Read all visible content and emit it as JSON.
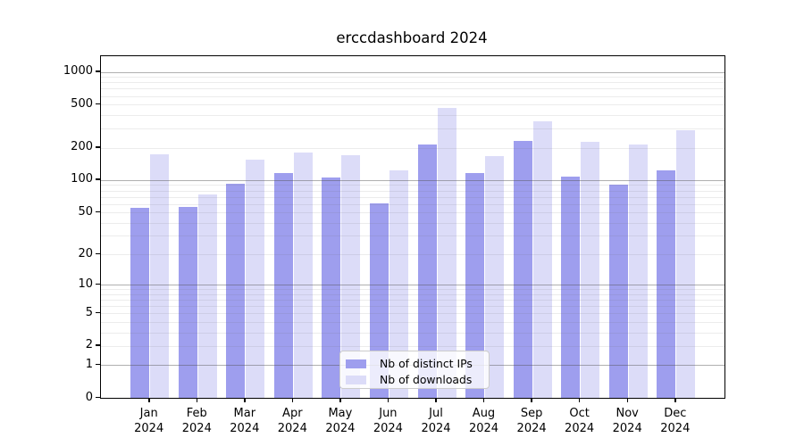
{
  "title": "erccdashboard 2024",
  "chart_data": {
    "type": "bar",
    "title": "erccdashboard 2024",
    "categories": [
      "Jan 2024",
      "Feb 2024",
      "Mar 2024",
      "Apr 2024",
      "May 2024",
      "Jun 2024",
      "Jul 2024",
      "Aug 2024",
      "Sep 2024",
      "Oct 2024",
      "Nov 2024",
      "Dec 2024"
    ],
    "series": [
      {
        "name": "Nb of distinct IPs",
        "color": "#9e9eee",
        "values": [
          55,
          56,
          93,
          117,
          105,
          61,
          213,
          117,
          229,
          108,
          91,
          122
        ]
      },
      {
        "name": "Nb of downloads",
        "color": "#dcdcf8",
        "values": [
          175,
          74,
          154,
          181,
          170,
          124,
          462,
          166,
          352,
          225,
          212,
          291
        ]
      }
    ],
    "xlabel": "",
    "ylabel": "",
    "y_ticks": [
      0,
      1,
      2,
      5,
      10,
      20,
      50,
      100,
      200,
      500,
      1000
    ],
    "y_scale": "log10(1+v)",
    "ylim": [
      0,
      1390
    ],
    "grid": "horizontal major(powers of 10, darker) + minor(2-9 per decade, light), drawn over bars",
    "legend_position": "inside axes, bottom center"
  }
}
